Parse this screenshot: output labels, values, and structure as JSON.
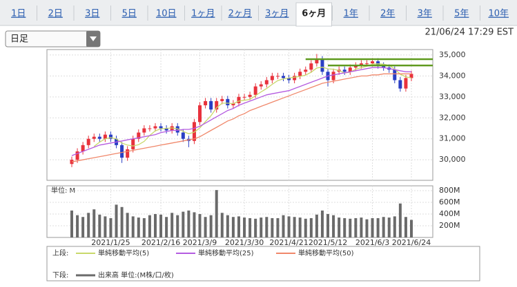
{
  "tabs": {
    "items": [
      "1日",
      "2日",
      "3日",
      "5日",
      "10日",
      "1ヶ月",
      "2ヶ月",
      "3ヶ月",
      "6ヶ月",
      "1年",
      "2年",
      "3年",
      "5年",
      "10年"
    ],
    "selected": 8
  },
  "dropdown": "日足",
  "timestamp": "21/06/24 17:29 EST",
  "chart_data": {
    "type": "candlestick",
    "categories": [
      null,
      null,
      null,
      null,
      null,
      null,
      null,
      "2021/1/25",
      null,
      null,
      null,
      null,
      null,
      null,
      null,
      null,
      "2021/2/16",
      null,
      null,
      null,
      null,
      null,
      null,
      "2021/3/9",
      null,
      null,
      null,
      null,
      null,
      null,
      null,
      "2021/3/30",
      null,
      null,
      null,
      null,
      null,
      null,
      null,
      "2021/4/21",
      null,
      null,
      null,
      null,
      null,
      null,
      "2021/5/12",
      null,
      null,
      null,
      null,
      null,
      null,
      null,
      "2021/6/3",
      null,
      null,
      null,
      null,
      null,
      null,
      "2021/6/24"
    ],
    "open": [
      29800,
      30000,
      30400,
      30700,
      31000,
      31100,
      31000,
      31200,
      31000,
      30700,
      30100,
      30500,
      31000,
      31300,
      31500,
      31500,
      31600,
      31500,
      31400,
      31600,
      31300,
      31000,
      30900,
      31800,
      32600,
      32800,
      32400,
      32800,
      32900,
      32600,
      32700,
      33000,
      33000,
      33100,
      33500,
      33600,
      33800,
      34000,
      34000,
      33900,
      33800,
      34000,
      34200,
      34300,
      34600,
      34800,
      34200,
      33800,
      34200,
      34300,
      34200,
      34400,
      34500,
      34600,
      34600,
      34700,
      34500,
      34400,
      34300,
      33800,
      33400,
      33900
    ],
    "high": [
      30150,
      30550,
      30850,
      31150,
      31250,
      31250,
      31350,
      31350,
      31150,
      30850,
      30650,
      31150,
      31450,
      31650,
      31650,
      31750,
      31750,
      31650,
      31750,
      31750,
      31450,
      31150,
      31950,
      32750,
      32950,
      32950,
      32950,
      33050,
      33050,
      32850,
      33150,
      33150,
      33250,
      33650,
      33750,
      33950,
      34150,
      34150,
      34150,
      34050,
      34150,
      34350,
      34450,
      34750,
      35050,
      34950,
      34350,
      34350,
      34450,
      34450,
      34550,
      34650,
      34750,
      34750,
      34850,
      34850,
      34650,
      34550,
      34450,
      33950,
      34050,
      34250
    ],
    "low": [
      29650,
      29850,
      30250,
      30550,
      30850,
      30850,
      30850,
      30850,
      30550,
      29850,
      29950,
      30350,
      30850,
      31150,
      31350,
      31350,
      31350,
      31250,
      31250,
      31150,
      30850,
      30600,
      30750,
      31650,
      32450,
      32250,
      32250,
      32650,
      32450,
      32450,
      32550,
      32850,
      32850,
      32950,
      33350,
      33450,
      33650,
      33850,
      33750,
      33650,
      33650,
      33850,
      34050,
      34150,
      34450,
      34050,
      33500,
      33650,
      34050,
      34050,
      34050,
      34250,
      34350,
      34450,
      34450,
      34350,
      34250,
      34150,
      33650,
      33250,
      33250,
      33750
    ],
    "close": [
      30000,
      30400,
      30700,
      31000,
      31100,
      31000,
      31200,
      31000,
      30700,
      30100,
      30500,
      31000,
      31300,
      31500,
      31500,
      31600,
      31500,
      31400,
      31600,
      31300,
      31000,
      30900,
      31800,
      32600,
      32800,
      32400,
      32800,
      32900,
      32600,
      32700,
      33000,
      33000,
      33100,
      33500,
      33600,
      33800,
      34000,
      34000,
      33900,
      33800,
      34000,
      34200,
      34300,
      34600,
      34800,
      34200,
      33800,
      34200,
      34300,
      34200,
      34400,
      34500,
      34600,
      34600,
      34700,
      34500,
      34400,
      34300,
      33800,
      33400,
      33900,
      34100
    ],
    "up_color": "#e8323c",
    "down_color": "#2a3fc4",
    "ylim": [
      29020,
      35260
    ],
    "yticks": [
      {
        "value": 30000,
        "label": "30,000"
      },
      {
        "value": 31000,
        "label": "31,000"
      },
      {
        "value": 32000,
        "label": "32,000"
      },
      {
        "value": 33000,
        "label": "33,000"
      },
      {
        "value": 34000,
        "label": "34,000"
      },
      {
        "value": 35000,
        "label": "35,000"
      }
    ],
    "grid": true,
    "legend_label": "上段:",
    "series": [
      {
        "name": "単純移動平均(5)",
        "color": "#c8d86a",
        "values": [
          null,
          null,
          null,
          null,
          30640,
          30840,
          31000,
          31060,
          31000,
          30800,
          30700,
          30660,
          30720,
          30880,
          31160,
          31380,
          31480,
          31500,
          31520,
          31480,
          31360,
          31240,
          31320,
          31520,
          31820,
          32100,
          32480,
          32700,
          32700,
          32680,
          32800,
          32840,
          32880,
          33060,
          33240,
          33400,
          33600,
          33780,
          33860,
          33900,
          33940,
          33980,
          34040,
          34180,
          34380,
          34420,
          34340,
          34320,
          34260,
          34140,
          34180,
          34320,
          34400,
          34460,
          34560,
          34580,
          34560,
          34500,
          34340,
          34080,
          33960,
          33900
        ]
      },
      {
        "name": "単純移動平均(25)",
        "color": "#b45be0",
        "values": [
          30200,
          30300,
          30400,
          30500,
          30600,
          30700,
          30750,
          30800,
          30850,
          30900,
          30950,
          31000,
          31050,
          31100,
          31150,
          31200,
          31300,
          31350,
          31400,
          31400,
          31450,
          31450,
          31500,
          31600,
          31750,
          31900,
          32050,
          32200,
          32350,
          32450,
          32600,
          32700,
          32800,
          32900,
          33000,
          33100,
          33150,
          33200,
          33250,
          33300,
          33400,
          33500,
          33600,
          33700,
          33800,
          33900,
          34000,
          34050,
          34100,
          34150,
          34200,
          34250,
          34300,
          34350,
          34400,
          34400,
          34400,
          34350,
          34300,
          34250,
          34200,
          34200
        ]
      },
      {
        "name": "単純移動平均(50)",
        "color": "#f0876a",
        "values": [
          29900,
          29950,
          30000,
          30050,
          30100,
          30150,
          30200,
          30250,
          30300,
          30350,
          30400,
          30450,
          30500,
          30550,
          30600,
          30650,
          30700,
          30750,
          30800,
          30850,
          30900,
          30950,
          31000,
          31100,
          31250,
          31400,
          31550,
          31700,
          31850,
          31950,
          32100,
          32200,
          32350,
          32450,
          32550,
          32650,
          32750,
          32850,
          32950,
          33050,
          33150,
          33250,
          33350,
          33450,
          33550,
          33650,
          33700,
          33750,
          33800,
          33850,
          33900,
          33950,
          34000,
          34000,
          34050,
          34050,
          34100,
          34100,
          34100,
          34100,
          34100,
          34100
        ]
      }
    ],
    "reference_lines": [
      {
        "value": 34800,
        "start": 42,
        "color": "#5f9a1e"
      },
      {
        "value": 34500,
        "start": 46,
        "color": "#5f9a1e"
      }
    ],
    "volume": {
      "unit_label": "単位: M",
      "legend_label": "下段:",
      "name": "出来高 単位:(M株/口/枚)",
      "color": "#6a6a6a",
      "values": [
        460,
        380,
        350,
        420,
        480,
        390,
        360,
        330,
        560,
        520,
        420,
        360,
        340,
        330,
        380,
        400,
        390,
        350,
        420,
        380,
        440,
        460,
        430,
        400,
        350,
        380,
        810,
        420,
        380,
        350,
        360,
        340,
        330,
        320,
        340,
        350,
        330,
        330,
        380,
        360,
        350,
        340,
        320,
        330,
        390,
        460,
        400,
        380,
        340,
        330,
        320,
        330,
        340,
        310,
        330,
        330,
        350,
        340,
        360,
        580,
        350,
        300
      ],
      "ylim": [
        0,
        882
      ],
      "yticks": [
        {
          "value": 200,
          "label": "200M"
        },
        {
          "value": 400,
          "label": "400M"
        },
        {
          "value": 600,
          "label": "600M"
        },
        {
          "value": 800,
          "label": "800M"
        }
      ]
    }
  }
}
